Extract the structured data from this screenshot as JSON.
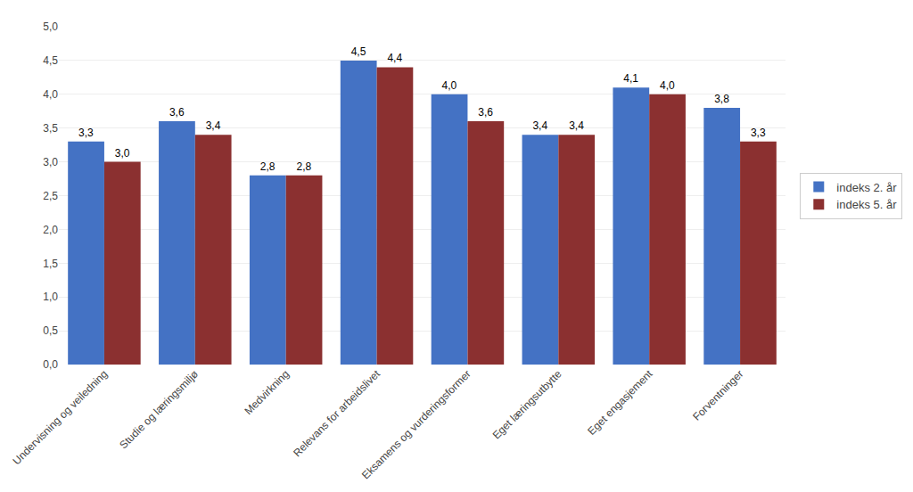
{
  "chart_data": {
    "type": "bar",
    "categories": [
      "Undervisning og veiledning",
      "Studie og læringsmiljø",
      "Medvirkning",
      "Relevans for arbeidslivet",
      "Eksamens og vurderingsformer",
      "Eget læringsutbytte",
      "Eget engasjement",
      "Forventninger"
    ],
    "series": [
      {
        "name": "indeks 2. år",
        "color": "#4472C4",
        "values": [
          3.3,
          3.6,
          2.8,
          4.5,
          4.0,
          3.4,
          4.1,
          3.8
        ],
        "value_labels": [
          "3,3",
          "3,6",
          "2,8",
          "4,5",
          "4,0",
          "3,4",
          "4,1",
          "3,8"
        ]
      },
      {
        "name": "indeks 5. år",
        "color": "#8B3030",
        "values": [
          3.0,
          3.4,
          2.8,
          4.4,
          3.6,
          3.4,
          4.0,
          3.3
        ],
        "value_labels": [
          "3,0",
          "3,4",
          "2,8",
          "4,4",
          "3,6",
          "3,4",
          "4,0",
          "3,3"
        ]
      }
    ],
    "ylim": [
      0.0,
      5.0
    ],
    "yticks": [
      {
        "value": 0.0,
        "label": "0,0"
      },
      {
        "value": 0.5,
        "label": "0,5"
      },
      {
        "value": 1.0,
        "label": "1,0"
      },
      {
        "value": 1.5,
        "label": "1,5"
      },
      {
        "value": 2.0,
        "label": "2,0"
      },
      {
        "value": 2.5,
        "label": "2,5"
      },
      {
        "value": 3.0,
        "label": "3,0"
      },
      {
        "value": 3.5,
        "label": "3,5"
      },
      {
        "value": 4.0,
        "label": "4,0"
      },
      {
        "value": 4.5,
        "label": "4,5"
      },
      {
        "value": 5.0,
        "label": "5,0"
      }
    ],
    "grid": true,
    "data_labels": true,
    "legend": "right"
  }
}
